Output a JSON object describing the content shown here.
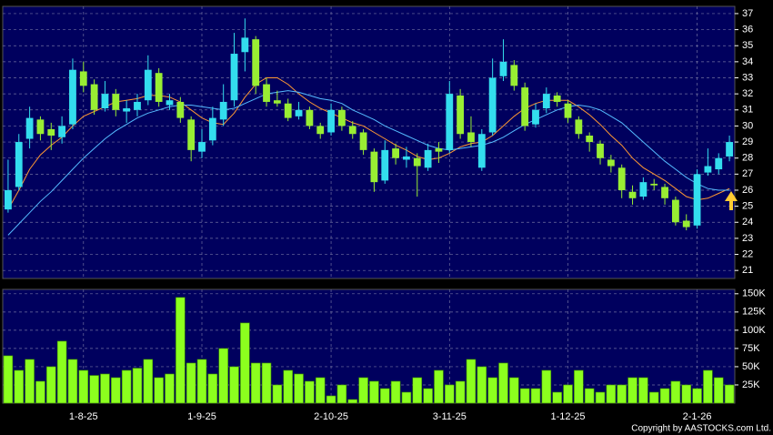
{
  "chart_data": [
    {
      "type": "bar",
      "color": "#8cff1e",
      "categories": [
        null,
        null,
        null,
        null,
        null,
        null,
        null,
        "1-8-25",
        null,
        null,
        null,
        null,
        null,
        null,
        null,
        null,
        null,
        null,
        "1-9-25",
        null,
        null,
        null,
        null,
        null,
        null,
        null,
        null,
        null,
        null,
        null,
        "2-10-25",
        null,
        null,
        null,
        null,
        null,
        null,
        null,
        null,
        null,
        null,
        "3-11-25",
        null,
        null,
        null,
        null,
        null,
        null,
        null,
        null,
        null,
        null,
        "1-12-25",
        null,
        null,
        null,
        null,
        null,
        null,
        null,
        null,
        null,
        null,
        null,
        "2-1-26",
        null,
        null,
        null
      ],
      "values": [
        65000,
        45000,
        60000,
        30000,
        50000,
        85000,
        60000,
        45000,
        38000,
        40000,
        35000,
        45000,
        48000,
        60000,
        35000,
        40000,
        145000,
        55000,
        60000,
        40000,
        75000,
        50000,
        110000,
        55000,
        55000,
        25000,
        45000,
        40000,
        30000,
        35000,
        10000,
        25000,
        5000,
        35000,
        30000,
        20000,
        30000,
        15000,
        35000,
        20000,
        45000,
        25000,
        30000,
        60000,
        50000,
        35000,
        55000,
        35000,
        20000,
        20000,
        45000,
        15000,
        25000,
        45000,
        20000,
        15000,
        25000,
        25000,
        35000,
        35000,
        15000,
        20000,
        30000,
        25000,
        20000,
        45000,
        35000,
        25000
      ],
      "ylim": [
        0,
        156000
      ],
      "yticks": [
        {
          "value": 25000,
          "label": "25K"
        },
        {
          "value": 50000,
          "label": "50K"
        },
        {
          "value": 75000,
          "label": "75K"
        },
        {
          "value": 100000,
          "label": "100K"
        },
        {
          "value": 125000,
          "label": "125K"
        },
        {
          "value": 150000,
          "label": "150K"
        }
      ],
      "grid": true,
      "footnote": "Copyright by AASTOCKS.com Ltd."
    },
    {
      "type": "candlestick",
      "up_color": "#33ddee",
      "down_color": "#99ee33",
      "open": [
        24.8,
        26.2,
        29.2,
        30.4,
        29.8,
        29.3,
        30.1,
        33.4,
        32.6,
        31.1,
        32,
        30.9,
        31,
        31.6,
        33.3,
        31.3,
        31.5,
        30.4,
        28.4,
        29.1,
        30.4,
        31.6,
        34.6,
        35.4,
        32.6,
        31.6,
        31.4,
        30.6,
        31,
        30,
        29.6,
        31,
        30,
        29.6,
        28.4,
        26.6,
        28.6,
        27.9,
        28,
        27.4,
        28.6,
        28.5,
        31.9,
        29.6,
        27.4,
        29.6,
        33.1,
        33.8,
        32.4,
        30.1,
        31.1,
        31.9,
        31.4,
        30.4,
        29.4,
        28.9,
        27.9,
        27.4,
        25.9,
        25.6,
        26.4,
        26.2,
        25.4,
        24.1,
        23.8,
        27.1,
        27.3,
        28.1
      ],
      "high": [
        27.9,
        29.5,
        31.2,
        30.6,
        30.2,
        30.6,
        34.2,
        34,
        32.9,
        32.8,
        32.3,
        31.6,
        32,
        34.4,
        33.6,
        32,
        31.8,
        30.6,
        29.8,
        31.2,
        32.6,
        35.8,
        36.7,
        35.6,
        33,
        32.2,
        31.7,
        31.5,
        31.2,
        30.2,
        31.4,
        31.2,
        30.3,
        29.8,
        28.6,
        29.1,
        28.9,
        28.7,
        28.3,
        28.9,
        29,
        32.8,
        32.3,
        30.6,
        29.8,
        34.2,
        35.4,
        34.1,
        32.7,
        31.4,
        32.4,
        32.1,
        31.6,
        30.6,
        29.6,
        29.1,
        28.2,
        27.6,
        26.3,
        26.8,
        26.7,
        26.4,
        25.6,
        24.5,
        27.3,
        28.6,
        28.3,
        29.4
      ],
      "low": [
        24.6,
        26,
        28.6,
        29.1,
        28.5,
        28.9,
        29.8,
        32.1,
        30.7,
        30.9,
        30.6,
        30.2,
        30.6,
        31.3,
        31.2,
        31,
        30.2,
        27.8,
        28,
        28.8,
        30,
        31.2,
        33.4,
        32,
        31.2,
        31.2,
        30.3,
        30.4,
        29.8,
        29.2,
        29.4,
        29.7,
        29.2,
        28.2,
        25.9,
        26.4,
        27.6,
        27.4,
        25.6,
        27.2,
        27.7,
        28.3,
        29.2,
        28.7,
        27.2,
        29.4,
        32.8,
        32.2,
        29.7,
        29.9,
        30.8,
        31.2,
        30.2,
        29.2,
        28.4,
        27.6,
        27.1,
        25.5,
        25.1,
        25.4,
        26,
        25.1,
        23.8,
        23.5,
        23.6,
        26.9,
        27,
        27.8
      ],
      "close": [
        26,
        29,
        30.5,
        29.5,
        29.4,
        30,
        33.5,
        32.5,
        31,
        32,
        31,
        31.1,
        31.5,
        33.5,
        31.5,
        31.6,
        30.5,
        28.5,
        29,
        30.5,
        31.5,
        34.5,
        35.5,
        32.5,
        31.5,
        31.4,
        30.5,
        31,
        30,
        29.5,
        31,
        30,
        29.5,
        28.5,
        26.5,
        28.5,
        28,
        28.1,
        27.5,
        28.5,
        28.4,
        32,
        29.5,
        29,
        29.5,
        33,
        34,
        32.5,
        30,
        31,
        32,
        31.5,
        30.5,
        29.5,
        29,
        28,
        27.5,
        26,
        25.5,
        26.5,
        26.3,
        25.5,
        24,
        23.7,
        27,
        27.5,
        28,
        29
      ],
      "lines": [
        {
          "color": "#ff9933",
          "values": [
            24.8,
            26,
            27.3,
            28.2,
            28.8,
            29.3,
            30,
            30.6,
            30.9,
            31.2,
            31.5,
            31.6,
            31.7,
            31.9,
            31.9,
            31.8,
            31.5,
            31,
            30.5,
            30.2,
            30.1,
            30.8,
            31.8,
            32.6,
            33,
            33,
            32.6,
            32,
            31.5,
            31.1,
            30.8,
            30.5,
            30.2,
            30,
            29.6,
            29.2,
            28.8,
            28.5,
            28.1,
            27.9,
            28,
            28.3,
            28.7,
            28.9,
            29,
            29.4,
            30,
            30.6,
            31.1,
            31.4,
            31.6,
            31.6,
            31.6,
            31.2,
            30.7,
            30.1,
            29.4,
            28.8,
            28,
            27.4,
            27,
            26.6,
            26.1,
            25.6,
            25.4,
            25.5,
            25.8,
            26.1
          ]
        },
        {
          "color": "#55bbff",
          "values": [
            23.2,
            23.9,
            24.6,
            25.3,
            25.9,
            26.6,
            27.3,
            28,
            28.6,
            29.2,
            29.7,
            30.1,
            30.5,
            30.8,
            31,
            31.2,
            31.3,
            31.3,
            31.2,
            31.1,
            31,
            31.1,
            31.4,
            31.7,
            32,
            32.1,
            32.2,
            32.1,
            31.9,
            31.7,
            31.6,
            31.4,
            31,
            30.7,
            30.4,
            30,
            29.7,
            29.4,
            29.1,
            28.8,
            28.6,
            28.5,
            28.6,
            28.7,
            28.8,
            29,
            29.3,
            29.7,
            30.1,
            30.4,
            30.7,
            31,
            31.2,
            31.3,
            31.2,
            31,
            30.6,
            30.2,
            29.6,
            29,
            28.4,
            27.8,
            27.3,
            26.8,
            26.4,
            26.1,
            26,
            26
          ]
        }
      ],
      "ylim": [
        20.5,
        37.45
      ],
      "yticks": [
        21,
        22,
        23,
        24,
        25,
        26,
        27,
        28,
        29,
        30,
        31,
        32,
        33,
        34,
        35,
        36,
        37
      ],
      "grid": true
    }
  ]
}
